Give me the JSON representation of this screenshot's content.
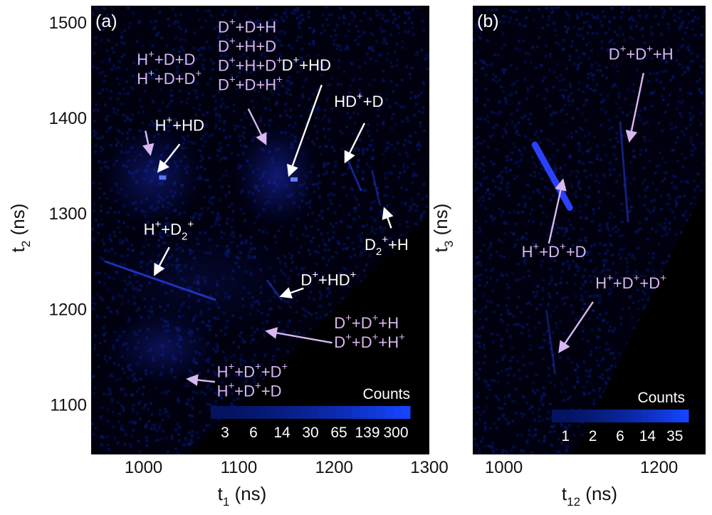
{
  "colors": {
    "background": "#00000e",
    "noise": "#000b52",
    "cloud": "#1a2bd8",
    "streak": "#2a44ff",
    "annotation_white": "#ffffff",
    "annotation_pink": "#d8b8f0"
  },
  "chart_data": [
    {
      "type": "heatmap",
      "panel_label": "(a)",
      "xlabel": "t",
      "xlabel_sub": "1",
      "xlabel_unit": " (ns)",
      "ylabel": "t",
      "ylabel_sub": "2",
      "ylabel_unit": " (ns)",
      "xlim": [
        945,
        1300
      ],
      "ylim": [
        1048,
        1518
      ],
      "xticks": [
        1000,
        1100,
        1200,
        1300
      ],
      "yticks": [
        1100,
        1200,
        1300,
        1400,
        1500
      ],
      "xtick_labels": [
        "1000",
        "1100",
        "1200",
        "1300"
      ],
      "ytick_labels": [
        "1100",
        "1200",
        "1300",
        "1400",
        "1500"
      ],
      "empty_region": "below diagonal t2 = t1",
      "colorbar": {
        "title": "Counts",
        "scale": "log",
        "tick_labels": [
          "3",
          "6",
          "14",
          "30",
          "65",
          "139",
          "300"
        ]
      },
      "clouds": [
        {
          "x": 1010,
          "y": 1340,
          "rx": 55,
          "ry": 55,
          "intensity": 0.45
        },
        {
          "x": 1140,
          "y": 1340,
          "rx": 45,
          "ry": 55,
          "intensity": 0.55
        },
        {
          "x": 1020,
          "y": 1160,
          "rx": 60,
          "ry": 40,
          "intensity": 0.4
        },
        {
          "x": 1060,
          "y": 1230,
          "rx": 110,
          "ry": 60,
          "intensity": 0.18
        }
      ],
      "streaks": [
        {
          "x0": 960,
          "y0": 1250,
          "x1": 1075,
          "y1": 1210,
          "intensity": 0.7
        },
        {
          "x0": 1130,
          "y0": 1230,
          "x1": 1145,
          "y1": 1210,
          "intensity": 0.45
        },
        {
          "x0": 1215,
          "y0": 1355,
          "x1": 1228,
          "y1": 1325,
          "intensity": 0.5
        },
        {
          "x0": 1240,
          "y0": 1345,
          "x1": 1248,
          "y1": 1310,
          "intensity": 0.4
        }
      ],
      "hotspots": [
        {
          "x": 1020,
          "y": 1338,
          "intensity": 0.95
        },
        {
          "x": 1158,
          "y": 1336,
          "intensity": 1.0
        }
      ],
      "annotations": [
        {
          "lines": [
            {
              "text": "H",
              "sup": "+",
              "rest": "+D+D"
            },
            {
              "text": "H",
              "sup": "+",
              "rest": "+D+D",
              "sup2": "+"
            }
          ],
          "color": "pink",
          "tx": 993,
          "ty": 1456,
          "ax0": 1002,
          "ay0": 1387,
          "ax1": 1007,
          "ay1": 1363
        },
        {
          "lines": [
            {
              "text": "H",
              "sup": "+",
              "rest": "+HD"
            }
          ],
          "color": "white",
          "tx": 1012,
          "ty": 1387,
          "ax0": 1038,
          "ay0": 1373,
          "ax1": 1016,
          "ay1": 1345
        },
        {
          "lines": [
            {
              "text": "D",
              "sup": "+",
              "rest": "+D+H"
            },
            {
              "text": "D",
              "sup": "+",
              "rest": "+H+D"
            },
            {
              "text": "D",
              "sup": "+",
              "rest": "+H+D",
              "sup2": "+"
            },
            {
              "text": "D",
              "sup": "+",
              "rest": "+D+H",
              "sup2": "+"
            }
          ],
          "color": "pink",
          "tx": 1078,
          "ty": 1490,
          "ax0": 1110,
          "ay0": 1410,
          "ax1": 1128,
          "ay1": 1374
        },
        {
          "lines": [
            {
              "text": "D",
              "sup": "+",
              "rest": "+HD"
            }
          ],
          "color": "white",
          "tx": 1145,
          "ty": 1450,
          "ax0": 1187,
          "ay0": 1435,
          "ax1": 1153,
          "ay1": 1341
        },
        {
          "lines": [
            {
              "text": "HD",
              "sup": "+",
              "rest": "+D"
            }
          ],
          "color": "white",
          "tx": 1200,
          "ty": 1412,
          "ax0": 1232,
          "ay0": 1395,
          "ax1": 1212,
          "ay1": 1355
        },
        {
          "lines": [
            {
              "text": "D",
              "sub": "2",
              "sup": "+",
              "rest": "+H"
            }
          ],
          "color": "white",
          "tx": 1232,
          "ty": 1262,
          "ax0": 1260,
          "ay0": 1285,
          "ax1": 1253,
          "ay1": 1305
        },
        {
          "lines": [
            {
              "text": "H",
              "sup": "+",
              "rest": "+D",
              "sub2": "2",
              "sup2": "+"
            }
          ],
          "color": "white",
          "tx": 1000,
          "ty": 1278,
          "ax0": 1027,
          "ay0": 1265,
          "ax1": 1012,
          "ay1": 1237
        },
        {
          "lines": [
            {
              "text": "D",
              "sup": "+",
              "rest": "+HD",
              "sup2": "+"
            }
          ],
          "color": "white",
          "tx": 1165,
          "ty": 1225,
          "ax0": 1168,
          "ay0": 1222,
          "ax1": 1145,
          "ay1": 1214
        },
        {
          "lines": [
            {
              "text": "D",
              "sup": "+",
              "rest": "+D",
              "sup2": "+",
              "rest2": "+H"
            },
            {
              "text": "D",
              "sup": "+",
              "rest": "+D",
              "sup2": "+",
              "rest2": "+H",
              "sup3": "+"
            }
          ],
          "color": "pink",
          "tx": 1200,
          "ty": 1180,
          "ax0": 1198,
          "ay0": 1165,
          "ax1": 1130,
          "ay1": 1177
        },
        {
          "lines": [
            {
              "text": "H",
              "sup": "+",
              "rest": "+D",
              "sup2": "+",
              "rest2": "+D",
              "sup3": "+"
            },
            {
              "text": "H",
              "sup": "+",
              "rest": "+D",
              "sup2": "+",
              "rest2": "+D"
            }
          ],
          "color": "pink",
          "tx": 1077,
          "ty": 1129,
          "ax0": 1075,
          "ay0": 1124,
          "ax1": 1047,
          "ay1": 1127
        }
      ]
    },
    {
      "type": "heatmap",
      "panel_label": "(b)",
      "xlabel": "t",
      "xlabel_sub": "12",
      "xlabel_unit": " (ns)",
      "ylabel": "t",
      "ylabel_sub": "3",
      "ylabel_unit": " (ns)",
      "xlim": [
        960,
        1260
      ],
      "ylim": [
        0,
        1
      ],
      "xticks": [
        1000,
        1200
      ],
      "xtick_labels": [
        "1000",
        "1200"
      ],
      "empty_region": "lower-right triangle",
      "colorbar": {
        "title": "Counts",
        "scale": "log",
        "tick_labels": [
          "1",
          "2",
          "6",
          "14",
          "35"
        ]
      },
      "streaks": [
        {
          "x0": 1040,
          "y0": 0.69,
          "x1": 1085,
          "y1": 0.55,
          "intensity": 1.0
        },
        {
          "x0": 1150,
          "y0": 0.74,
          "x1": 1160,
          "y1": 0.52,
          "intensity": 0.45
        },
        {
          "x0": 1055,
          "y0": 0.32,
          "x1": 1066,
          "y1": 0.18,
          "intensity": 0.35
        }
      ],
      "annotations": [
        {
          "lines": [
            {
              "text": "D",
              "sup": "+",
              "rest": "+D",
              "sup2": "+",
              "rest2": "+H"
            }
          ],
          "color": "pink",
          "tx": 1135,
          "ty": 0.88,
          "ax0": 1180,
          "ay0": 0.85,
          "ax1": 1162,
          "ay1": 0.7
        },
        {
          "lines": [
            {
              "text": "H",
              "sup": "+",
              "rest": "+D",
              "sup2": "+",
              "rest2": "+D"
            }
          ],
          "color": "pink",
          "tx": 1023,
          "ty": 0.44,
          "ax0": 1058,
          "ay0": 0.47,
          "ax1": 1076,
          "ay1": 0.61
        },
        {
          "lines": [
            {
              "text": "H",
              "sup": "+",
              "rest": "+D",
              "sup2": "+",
              "rest2": "+D",
              "sup3": "+"
            }
          ],
          "color": "pink",
          "tx": 1118,
          "ty": 0.37,
          "ax0": 1115,
          "ay0": 0.34,
          "ax1": 1072,
          "ay1": 0.23
        }
      ]
    }
  ]
}
